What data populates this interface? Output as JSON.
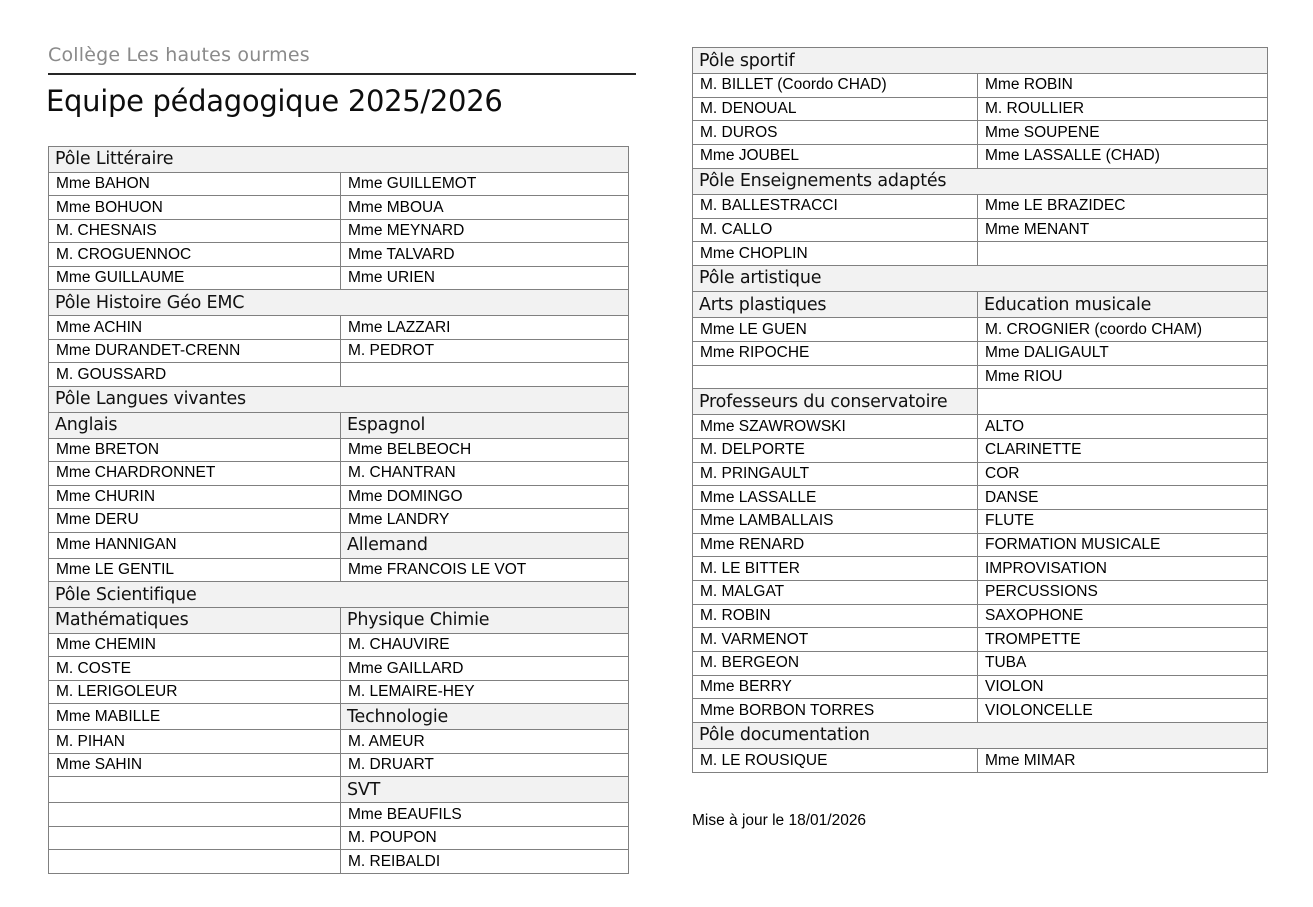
{
  "header": {
    "school_name": "Collège Les hautes ourmes",
    "title": "Equipe pédagogique 2025/2026"
  },
  "footer": {
    "note": "Mise à jour le 18/01/2026"
  },
  "colors": {
    "header_cell_bg": "#f2f2f2",
    "table_border": "#808080",
    "school_name_gray": "#8a8a8a"
  },
  "tables": {
    "left": {
      "rows": [
        {
          "section": "Pôle Littéraire"
        },
        {
          "cells": [
            {
              "text": "Mme BAHON"
            },
            {
              "text": "Mme GUILLEMOT"
            }
          ]
        },
        {
          "cells": [
            {
              "text": "Mme BOHUON"
            },
            {
              "text": "Mme MBOUA"
            }
          ]
        },
        {
          "cells": [
            {
              "text": "M. CHESNAIS"
            },
            {
              "text": "Mme MEYNARD"
            }
          ]
        },
        {
          "cells": [
            {
              "text": "M. CROGUENNOC"
            },
            {
              "text": "Mme TALVARD"
            }
          ]
        },
        {
          "cells": [
            {
              "text": "Mme GUILLAUME"
            },
            {
              "text": "Mme URIEN"
            }
          ]
        },
        {
          "section": "Pôle Histoire Géo EMC"
        },
        {
          "cells": [
            {
              "text": "Mme ACHIN"
            },
            {
              "text": "Mme LAZZARI"
            }
          ]
        },
        {
          "cells": [
            {
              "text": "Mme DURANDET-CRENN"
            },
            {
              "text": "M. PEDROT"
            }
          ]
        },
        {
          "cells": [
            {
              "text": "M. GOUSSARD"
            },
            {
              "text": ""
            }
          ]
        },
        {
          "section": "Pôle Langues vivantes"
        },
        {
          "cells": [
            {
              "text": "Anglais",
              "subheader": true
            },
            {
              "text": "Espagnol",
              "subheader": true
            }
          ]
        },
        {
          "cells": [
            {
              "text": "Mme BRETON"
            },
            {
              "text": "Mme BELBEOCH"
            }
          ]
        },
        {
          "cells": [
            {
              "text": "Mme CHARDRONNET"
            },
            {
              "text": "M. CHANTRAN"
            }
          ]
        },
        {
          "cells": [
            {
              "text": "Mme CHURIN"
            },
            {
              "text": "Mme DOMINGO"
            }
          ]
        },
        {
          "cells": [
            {
              "text": "Mme DERU"
            },
            {
              "text": "Mme LANDRY"
            }
          ]
        },
        {
          "cells": [
            {
              "text": "Mme HANNIGAN"
            },
            {
              "text": "Allemand",
              "subheader": true
            }
          ]
        },
        {
          "cells": [
            {
              "text": "Mme LE GENTIL"
            },
            {
              "text": "Mme FRANCOIS LE VOT"
            }
          ]
        },
        {
          "section": "Pôle Scientifique"
        },
        {
          "cells": [
            {
              "text": "Mathématiques",
              "subheader": true
            },
            {
              "text": "Physique Chimie",
              "subheader": true
            }
          ]
        },
        {
          "cells": [
            {
              "text": "Mme CHEMIN"
            },
            {
              "text": "M. CHAUVIRE"
            }
          ]
        },
        {
          "cells": [
            {
              "text": "M. COSTE"
            },
            {
              "text": "Mme GAILLARD"
            }
          ]
        },
        {
          "cells": [
            {
              "text": "M. LERIGOLEUR"
            },
            {
              "text": "M. LEMAIRE-HEY"
            }
          ]
        },
        {
          "cells": [
            {
              "text": "Mme MABILLE"
            },
            {
              "text": "Technologie",
              "subheader": true
            }
          ]
        },
        {
          "cells": [
            {
              "text": "M. PIHAN"
            },
            {
              "text": "M. AMEUR"
            }
          ]
        },
        {
          "cells": [
            {
              "text": "Mme SAHIN"
            },
            {
              "text": "M. DRUART"
            }
          ]
        },
        {
          "cells": [
            {
              "text": ""
            },
            {
              "text": "SVT",
              "subheader": true
            }
          ]
        },
        {
          "cells": [
            {
              "text": ""
            },
            {
              "text": "Mme BEAUFILS"
            }
          ]
        },
        {
          "cells": [
            {
              "text": ""
            },
            {
              "text": "M. POUPON"
            }
          ]
        },
        {
          "cells": [
            {
              "text": ""
            },
            {
              "text": "M. REIBALDI"
            }
          ]
        }
      ]
    },
    "right": {
      "rows": [
        {
          "section": "Pôle sportif"
        },
        {
          "cells": [
            {
              "text": "M. BILLET (Coordo CHAD)"
            },
            {
              "text": "Mme ROBIN"
            }
          ]
        },
        {
          "cells": [
            {
              "text": "M. DENOUAL"
            },
            {
              "text": "M. ROULLIER"
            }
          ]
        },
        {
          "cells": [
            {
              "text": "M. DUROS"
            },
            {
              "text": "Mme SOUPENE"
            }
          ]
        },
        {
          "cells": [
            {
              "text": "Mme JOUBEL"
            },
            {
              "text": "Mme LASSALLE (CHAD)"
            }
          ]
        },
        {
          "section": "Pôle Enseignements adaptés"
        },
        {
          "cells": [
            {
              "text": "M. BALLESTRACCI"
            },
            {
              "text": "Mme LE BRAZIDEC"
            }
          ]
        },
        {
          "cells": [
            {
              "text": "M. CALLO"
            },
            {
              "text": "Mme MENANT"
            }
          ]
        },
        {
          "cells": [
            {
              "text": "Mme CHOPLIN"
            },
            {
              "text": ""
            }
          ]
        },
        {
          "section": "Pôle artistique"
        },
        {
          "cells": [
            {
              "text": "Arts plastiques",
              "subheader": true
            },
            {
              "text": "Education musicale",
              "subheader": true
            }
          ]
        },
        {
          "cells": [
            {
              "text": "Mme LE GUEN"
            },
            {
              "text": "M. CROGNIER (coordo CHAM)"
            }
          ]
        },
        {
          "cells": [
            {
              "text": "Mme RIPOCHE"
            },
            {
              "text": "Mme DALIGAULT"
            }
          ]
        },
        {
          "cells": [
            {
              "text": ""
            },
            {
              "text": "Mme RIOU"
            }
          ]
        },
        {
          "cells": [
            {
              "text": "Professeurs du conservatoire",
              "subheader": true
            },
            {
              "text": ""
            }
          ]
        },
        {
          "cells": [
            {
              "text": "Mme SZAWROWSKI"
            },
            {
              "text": "ALTO"
            }
          ]
        },
        {
          "cells": [
            {
              "text": "M. DELPORTE"
            },
            {
              "text": "CLARINETTE"
            }
          ]
        },
        {
          "cells": [
            {
              "text": "M. PRINGAULT"
            },
            {
              "text": "COR"
            }
          ]
        },
        {
          "cells": [
            {
              "text": "Mme LASSALLE"
            },
            {
              "text": "DANSE"
            }
          ]
        },
        {
          "cells": [
            {
              "text": "Mme LAMBALLAIS"
            },
            {
              "text": "FLUTE"
            }
          ]
        },
        {
          "cells": [
            {
              "text": "Mme RENARD"
            },
            {
              "text": "FORMATION MUSICALE"
            }
          ]
        },
        {
          "cells": [
            {
              "text": "M. LE BITTER"
            },
            {
              "text": "IMPROVISATION"
            }
          ]
        },
        {
          "cells": [
            {
              "text": "M. MALGAT"
            },
            {
              "text": "PERCUSSIONS"
            }
          ]
        },
        {
          "cells": [
            {
              "text": "M. ROBIN"
            },
            {
              "text": "SAXOPHONE"
            }
          ]
        },
        {
          "cells": [
            {
              "text": "M. VARMENOT"
            },
            {
              "text": "TROMPETTE"
            }
          ]
        },
        {
          "cells": [
            {
              "text": "M. BERGEON"
            },
            {
              "text": "TUBA"
            }
          ]
        },
        {
          "cells": [
            {
              "text": "Mme BERRY"
            },
            {
              "text": "VIOLON"
            }
          ]
        },
        {
          "cells": [
            {
              "text": "Mme BORBON TORRES"
            },
            {
              "text": "VIOLONCELLE"
            }
          ]
        },
        {
          "section": "Pôle documentation"
        },
        {
          "cells": [
            {
              "text": "M. LE ROUSIQUE"
            },
            {
              "text": "Mme MIMAR"
            }
          ]
        }
      ]
    }
  }
}
